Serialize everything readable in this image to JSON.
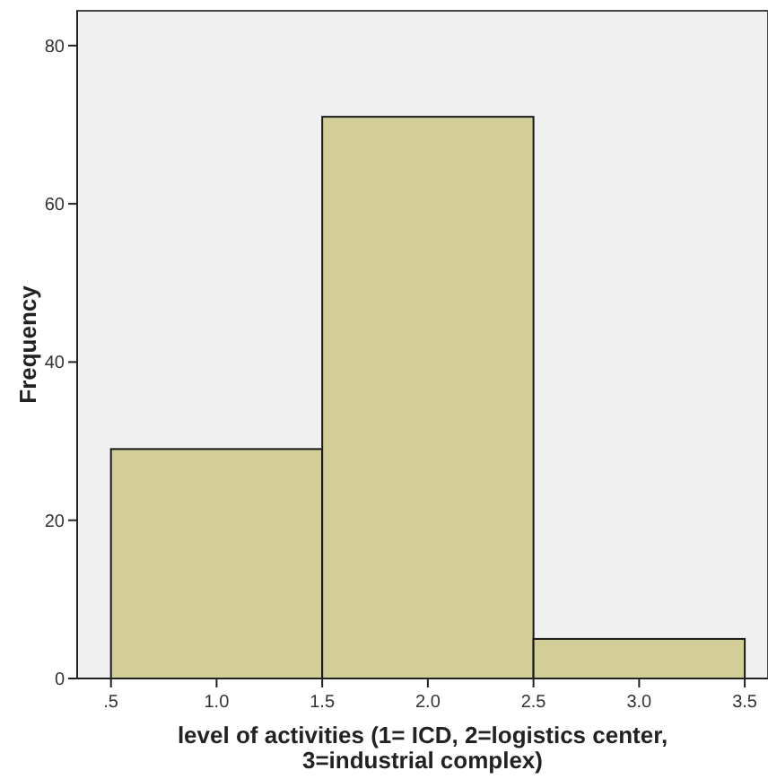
{
  "chart_data": {
    "type": "histogram",
    "xlabel": "level of activities (1= ICD, 2=logistics center, 3=industrial complex)",
    "ylabel": "Frequency",
    "bins": [
      0.5,
      1.5,
      2.5,
      3.5
    ],
    "values": [
      29,
      71,
      5
    ],
    "color": "#d3ce98",
    "xlim": [
      0.34,
      3.61
    ],
    "xticks": [
      {
        "value": 0.5,
        "label": ".5"
      },
      {
        "value": 1,
        "label": "1.0"
      },
      1.5,
      {
        "value": 2,
        "label": "2.0"
      },
      2.5,
      {
        "value": 3,
        "label": "3.0"
      },
      3.5
    ],
    "ylim": [
      0,
      84.4
    ],
    "yticks": [
      0,
      20,
      40,
      60,
      80
    ],
    "grid": false
  }
}
